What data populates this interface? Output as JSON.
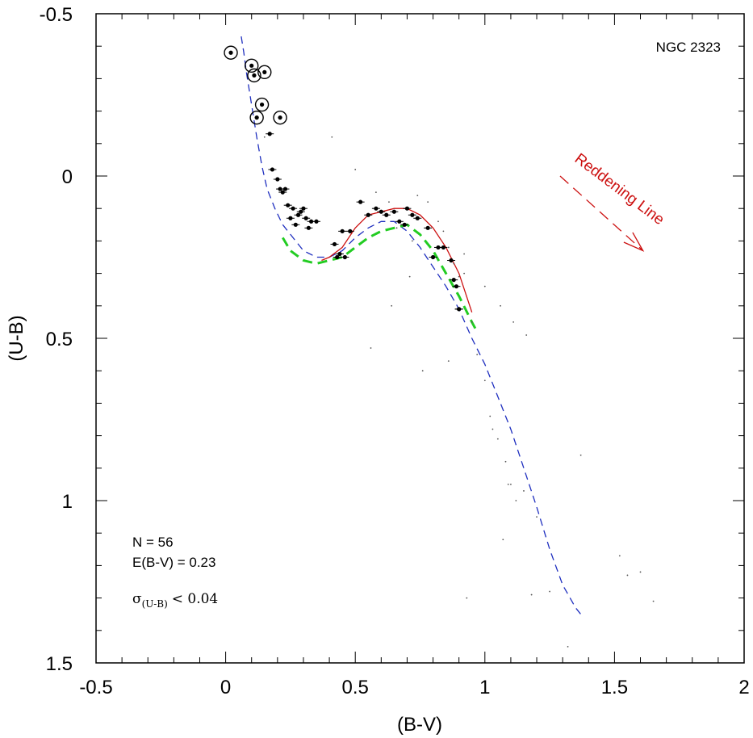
{
  "chart_data": {
    "type": "scatter",
    "title": "NGC 2323",
    "xlabel": "(B-V)",
    "ylabel": "(U-B)",
    "xlim": [
      -0.5,
      2.0
    ],
    "ylim": [
      1.5,
      -0.5
    ],
    "y_inverted": true,
    "xticks": [
      -0.5,
      0,
      0.5,
      1,
      1.5,
      2
    ],
    "xtick_labels": [
      "-0.5",
      "0",
      "0.5",
      "1",
      "1.5",
      "2"
    ],
    "yticks": [
      -0.5,
      0,
      0.5,
      1,
      1.5
    ],
    "ytick_labels": [
      "-0.5",
      "0",
      "0.5",
      "1",
      "1.5"
    ],
    "grid": false,
    "annotations": {
      "n_stars": "N = 56",
      "reddening": "E(B-V) = 0.23",
      "sigma_symbol": "σ",
      "sigma_subscript": "(U-B)",
      "sigma_value": "< 0.04",
      "reddening_line": "Reddening Line"
    },
    "reddening_vector": {
      "x": [
        1.29,
        1.61
      ],
      "y": [
        0.0,
        0.23
      ]
    },
    "colors": {
      "zams": "#1f2fbf",
      "reddened_green": "#22cc22",
      "fit_red": "#cc1111",
      "reddening_text": "#cc1111",
      "points": "#000000"
    },
    "series": [
      {
        "name": "ZAMS (blue dashed)",
        "style": "dashed",
        "x": [
          0.06,
          0.07,
          0.08,
          0.1,
          0.12,
          0.14,
          0.16,
          0.19,
          0.22,
          0.26,
          0.3,
          0.35,
          0.4,
          0.45,
          0.5,
          0.55,
          0.6,
          0.65,
          0.7,
          0.75,
          0.8,
          0.85,
          0.9,
          0.95,
          1.0,
          1.05,
          1.1,
          1.15,
          1.2,
          1.25,
          1.3,
          1.35,
          1.37
        ],
        "y": [
          -0.43,
          -0.38,
          -0.32,
          -0.22,
          -0.12,
          -0.03,
          0.04,
          0.1,
          0.15,
          0.19,
          0.23,
          0.25,
          0.25,
          0.23,
          0.19,
          0.16,
          0.14,
          0.14,
          0.17,
          0.22,
          0.28,
          0.34,
          0.41,
          0.5,
          0.58,
          0.68,
          0.78,
          0.9,
          1.02,
          1.15,
          1.26,
          1.33,
          1.35
        ]
      },
      {
        "name": "Fitted ZAMS (red)",
        "style": "solid",
        "x": [
          0.37,
          0.4,
          0.45,
          0.5,
          0.55,
          0.6,
          0.65,
          0.7,
          0.75,
          0.8,
          0.85,
          0.9,
          0.95
        ],
        "y": [
          0.26,
          0.25,
          0.22,
          0.16,
          0.12,
          0.11,
          0.1,
          0.1,
          0.12,
          0.16,
          0.22,
          0.3,
          0.42
        ]
      },
      {
        "name": "Reddened ZAMS (green dashed)",
        "style": "dashed",
        "x": [
          0.22,
          0.25,
          0.3,
          0.35,
          0.4,
          0.45,
          0.5,
          0.55,
          0.6,
          0.65,
          0.7,
          0.75,
          0.8,
          0.85,
          0.9,
          0.95,
          0.97
        ],
        "y": [
          0.19,
          0.23,
          0.26,
          0.27,
          0.26,
          0.25,
          0.22,
          0.19,
          0.17,
          0.16,
          0.15,
          0.18,
          0.23,
          0.3,
          0.37,
          0.45,
          0.48
        ]
      },
      {
        "name": "Member stars (circled)",
        "x": [
          0.02,
          0.1,
          0.11,
          0.15,
          0.14,
          0.12,
          0.21
        ],
        "y": [
          -0.38,
          -0.34,
          -0.31,
          -0.32,
          -0.22,
          -0.18,
          -0.18
        ]
      },
      {
        "name": "Member stars (dots with error bars)",
        "x": [
          0.17,
          0.18,
          0.2,
          0.21,
          0.22,
          0.23,
          0.24,
          0.25,
          0.26,
          0.27,
          0.28,
          0.29,
          0.3,
          0.31,
          0.32,
          0.33,
          0.35,
          0.42,
          0.43,
          0.44,
          0.45,
          0.46,
          0.48,
          0.52,
          0.55,
          0.58,
          0.6,
          0.62,
          0.65,
          0.67,
          0.69,
          0.7,
          0.72,
          0.74,
          0.78,
          0.8,
          0.82,
          0.84,
          0.87,
          0.88,
          0.89,
          0.9,
          0.9
        ],
        "y": [
          -0.13,
          -0.02,
          0.01,
          0.04,
          0.05,
          0.04,
          0.09,
          0.13,
          0.1,
          0.15,
          0.12,
          0.11,
          0.1,
          0.13,
          0.16,
          0.14,
          0.14,
          0.21,
          0.25,
          0.24,
          0.17,
          0.25,
          0.17,
          0.08,
          0.12,
          0.1,
          0.11,
          0.12,
          0.11,
          0.14,
          0.15,
          0.1,
          0.12,
          0.13,
          0.16,
          0.25,
          0.22,
          0.22,
          0.26,
          0.32,
          0.34,
          0.41,
          0.41
        ]
      },
      {
        "name": "Field stars (small dots)",
        "x": [
          0.15,
          0.41,
          0.5,
          0.58,
          0.63,
          0.66,
          0.72,
          0.74,
          0.78,
          0.82,
          0.84,
          0.86,
          0.88,
          0.9,
          0.92,
          0.95,
          0.97,
          1.0,
          1.02,
          1.05,
          1.08,
          1.1,
          1.12,
          1.15,
          1.2,
          1.25,
          0.56,
          0.76,
          0.64,
          0.86,
          0.93,
          1.03,
          1.09,
          1.07,
          1.18,
          1.32,
          1.37,
          1.52,
          1.55,
          1.6,
          1.65,
          0.71,
          0.92,
          1.0,
          1.06,
          1.11,
          1.16
        ],
        "y": [
          -0.12,
          -0.12,
          -0.02,
          0.05,
          0.08,
          0.16,
          0.2,
          0.06,
          0.08,
          0.14,
          0.17,
          0.22,
          0.27,
          0.31,
          0.3,
          0.45,
          0.55,
          0.63,
          0.74,
          0.81,
          0.88,
          0.95,
          1.0,
          0.97,
          1.05,
          1.28,
          0.53,
          0.6,
          0.4,
          0.57,
          1.3,
          0.78,
          0.95,
          1.12,
          1.29,
          1.45,
          0.86,
          1.17,
          1.23,
          1.22,
          1.31,
          0.31,
          0.24,
          0.34,
          0.4,
          0.45,
          0.49
        ]
      }
    ]
  }
}
